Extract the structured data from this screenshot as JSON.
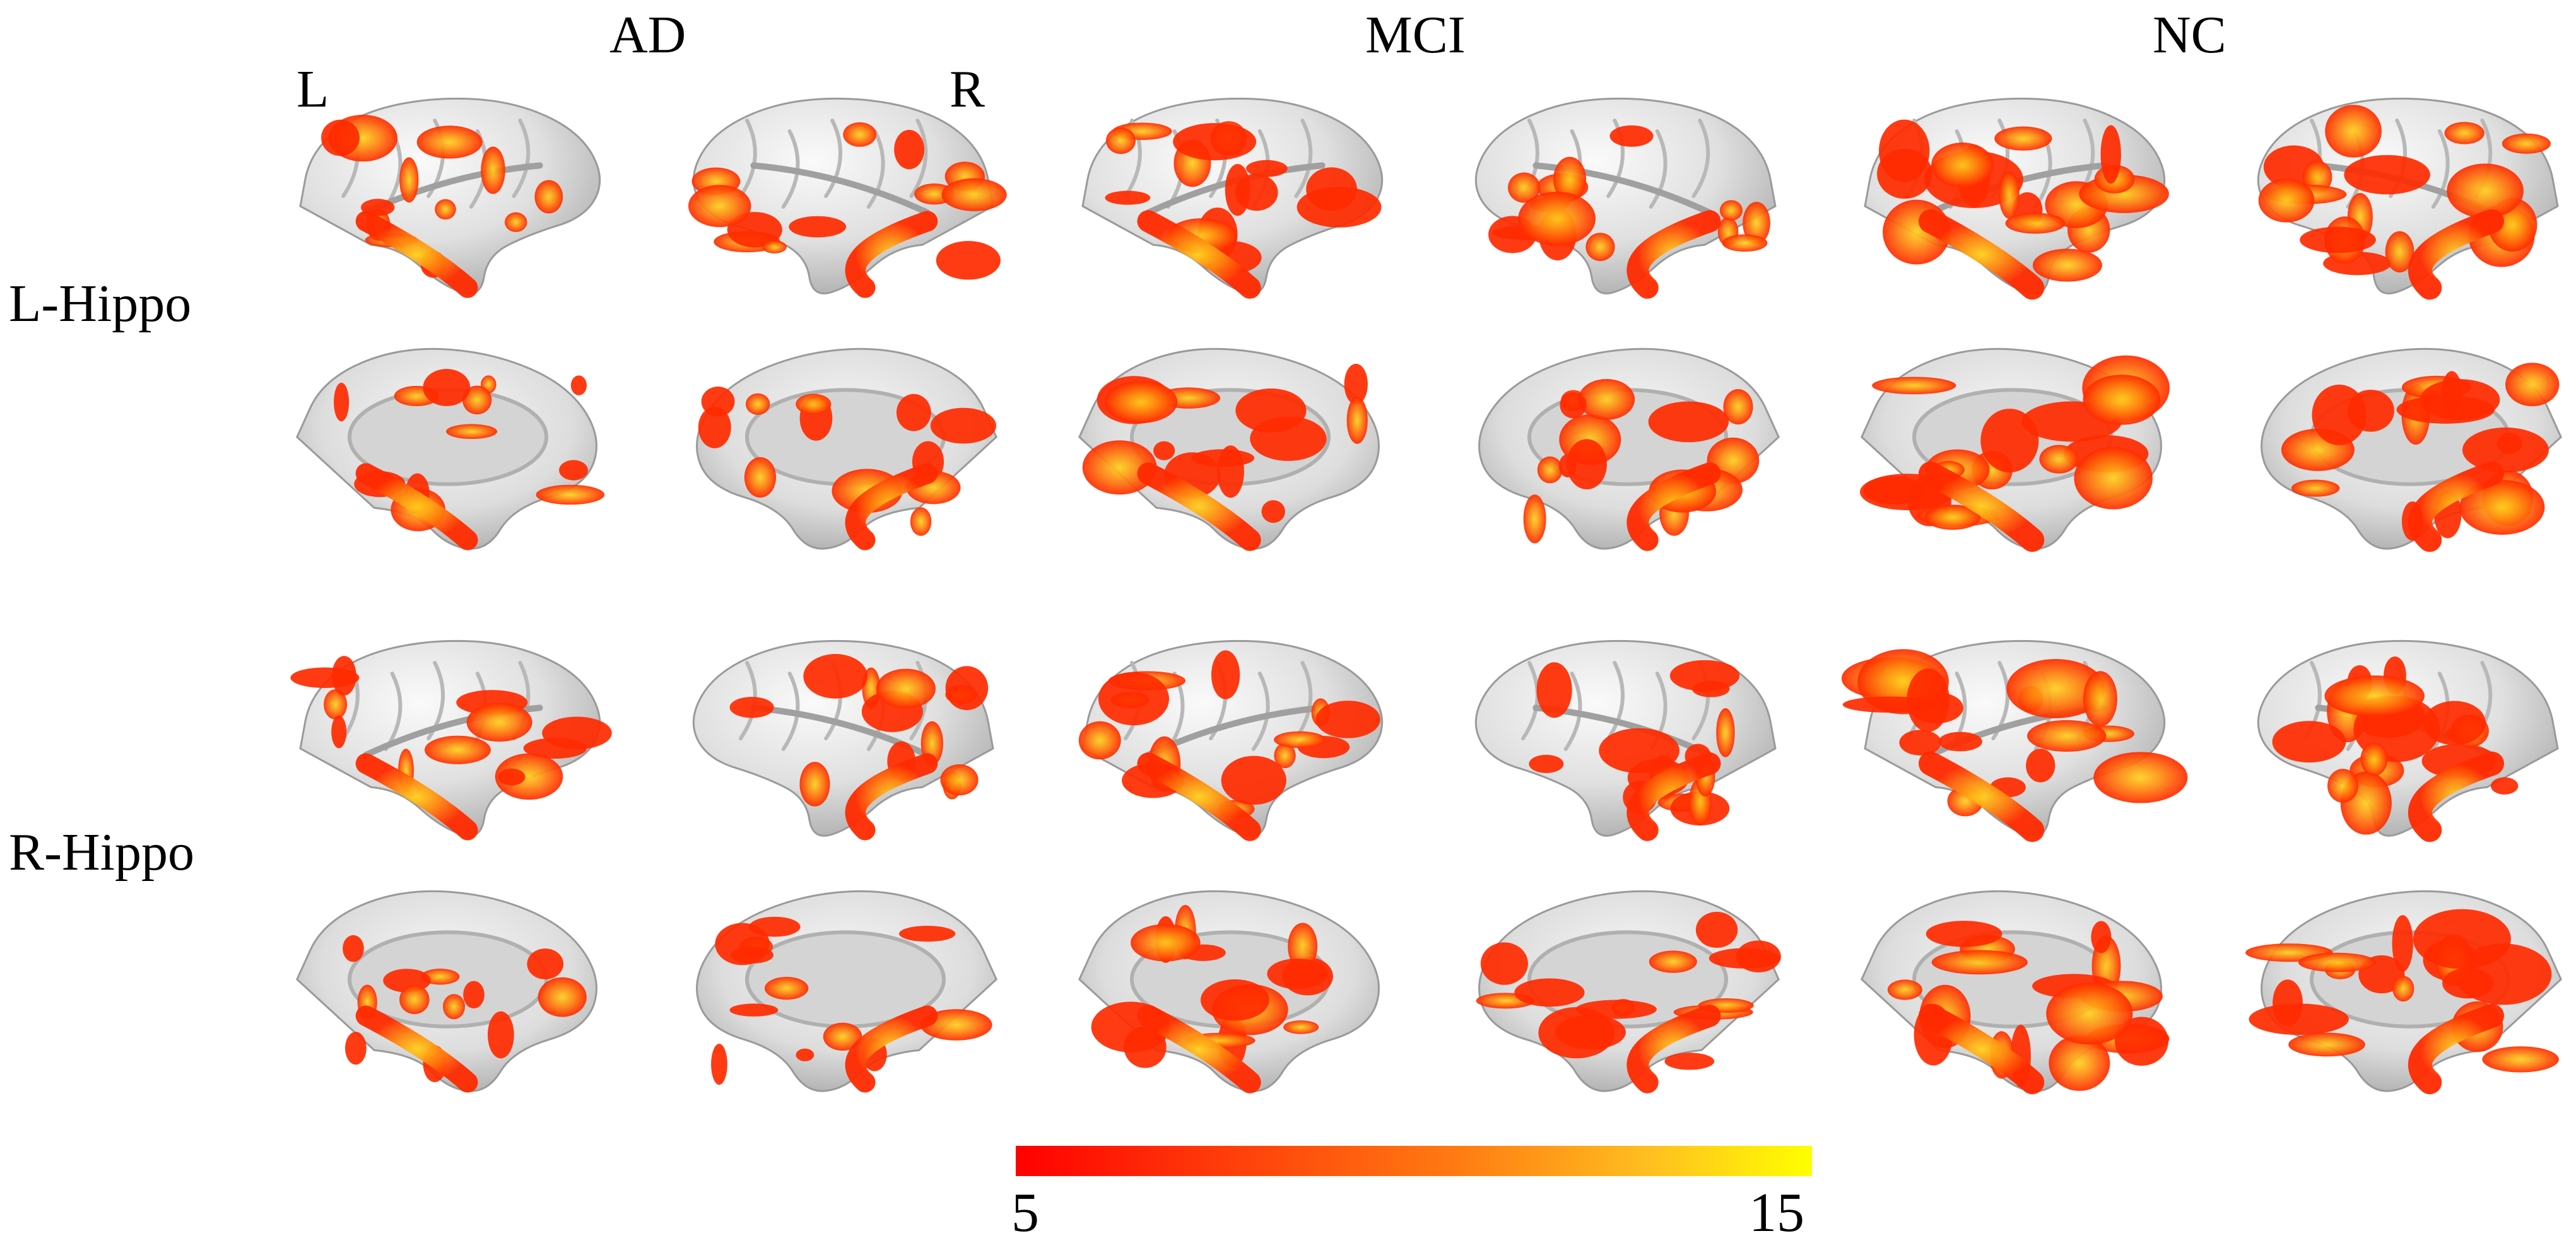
{
  "groups": [
    "AD",
    "MCI",
    "NC"
  ],
  "hemisphere_labels": {
    "left": "L",
    "right": "R"
  },
  "seeds": [
    "L-Hippo",
    "R-Hippo"
  ],
  "views": [
    "lateral",
    "medial"
  ],
  "colorbar": {
    "min": "5",
    "max": "15",
    "color_low": "#ff0000",
    "color_high": "#ffff00"
  },
  "surface_color": "#dcdcdc",
  "activation_color": "#ff2a00"
}
